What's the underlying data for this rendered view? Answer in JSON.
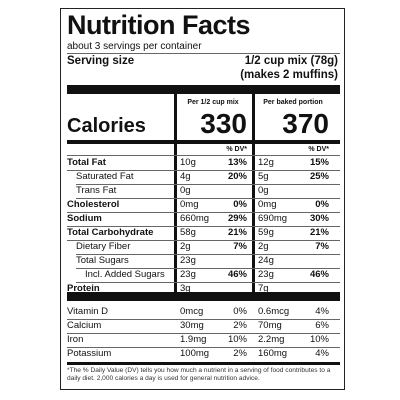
{
  "label": {
    "title": "Nutrition Facts",
    "servings": "about 3 servings per container",
    "serving_size_label": "Serving size",
    "serving_size": "1/2 cup mix (78g)",
    "serving_size_note": "(makes 2 muffins)",
    "columns": [
      "Per 1/2 cup mix",
      "Per baked portion"
    ],
    "calories_label": "Calories",
    "calories": [
      330,
      370
    ],
    "dv_headers": [
      "% DV*",
      "% DV*"
    ],
    "nutrients": [
      {
        "label": "Total Fat",
        "values": [
          {
            "amount": "10g",
            "dv": "13%"
          },
          {
            "amount": "12g",
            "dv": "15%"
          }
        ]
      },
      {
        "label": "Saturated Fat",
        "values": [
          {
            "amount": "4g",
            "dv": "20%"
          },
          {
            "amount": "5g",
            "dv": "25%"
          }
        ]
      },
      {
        "label": "Trans Fat",
        "values": [
          {
            "amount": "0g"
          },
          {
            "amount": "0g"
          }
        ]
      },
      {
        "label": "Cholesterol",
        "values": [
          {
            "amount": "0mg",
            "dv": "0%"
          },
          {
            "amount": "0mg",
            "dv": "0%"
          }
        ]
      },
      {
        "label": "Sodium",
        "values": [
          {
            "amount": "660mg",
            "dv": "29%"
          },
          {
            "amount": "690mg",
            "dv": "30%"
          }
        ]
      },
      {
        "label": "Total Carbohydrate",
        "values": [
          {
            "amount": "58g",
            "dv": "21%"
          },
          {
            "amount": "59g",
            "dv": "21%"
          }
        ]
      },
      {
        "label": "Dietary Fiber",
        "values": [
          {
            "amount": "2g",
            "dv": "7%"
          },
          {
            "amount": "2g",
            "dv": "7%"
          }
        ]
      },
      {
        "label": "Total Sugars",
        "values": [
          {
            "amount": "23g"
          },
          {
            "amount": "24g"
          }
        ]
      },
      {
        "label": "Incl. Added Sugars",
        "values": [
          {
            "amount": "23g",
            "dv": "46%"
          },
          {
            "amount": "23g",
            "dv": "46%"
          }
        ]
      },
      {
        "label": "Protein",
        "values": [
          {
            "amount": "3g"
          },
          {
            "amount": "7g"
          }
        ]
      }
    ],
    "vitamins": [
      {
        "label": "Vitamin D",
        "values": [
          {
            "amount": "0mcg",
            "dv": "0%"
          },
          {
            "amount": "0.6mcg",
            "dv": "4%"
          }
        ]
      },
      {
        "label": "Calcium",
        "values": [
          {
            "amount": "30mg",
            "dv": "2%"
          },
          {
            "amount": "70mg",
            "dv": "6%"
          }
        ]
      },
      {
        "label": "Iron",
        "values": [
          {
            "amount": "1.9mg",
            "dv": "10%"
          },
          {
            "amount": "2.2mg",
            "dv": "10%"
          }
        ]
      },
      {
        "label": "Potassium",
        "values": [
          {
            "amount": "100mg",
            "dv": "2%"
          },
          {
            "amount": "160mg",
            "dv": "4%"
          }
        ]
      }
    ],
    "footnote": "*The % Daily Value (DV) tells you how much a nutrient in a serving of food contributes to a daily diet. 2,000 calories a day is used for general nutrition advice."
  }
}
